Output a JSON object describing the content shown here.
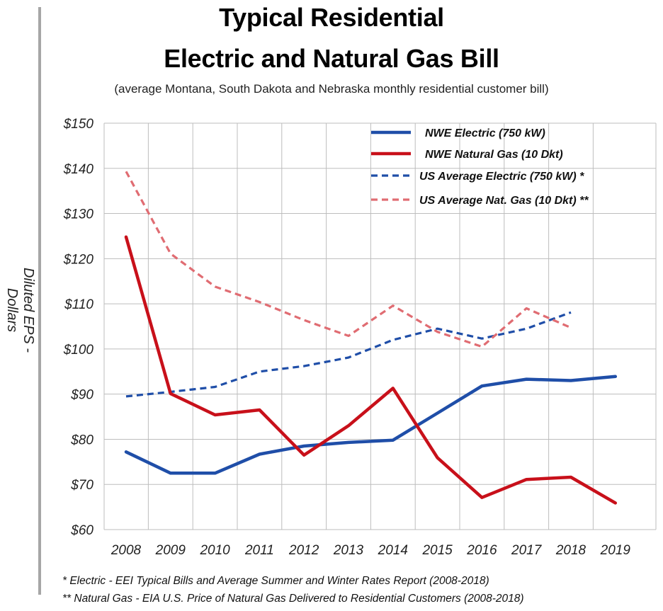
{
  "title_line1": "Typical Residential",
  "title_line2": "Electric and Natural Gas Bill",
  "subtitle": "(average Montana, South Dakota and Nebraska monthly residential customer bill)",
  "footnotes": [
    "* Electric - EEI Typical Bills and Average Summer and Winter Rates Report (2008-2018)",
    "** Natural Gas - EIA U.S. Price of Natural Gas Delivered to Residential Customers (2008-2018)"
  ],
  "chart_data": {
    "type": "line",
    "title": "Typical Residential Electric and Natural Gas Bill",
    "subtitle": "(average Montana, South Dakota and Nebraska monthly residential customer bill)",
    "ylabel": "Diluted EPS - Dollars",
    "xlabel": "",
    "ylim": [
      60,
      150
    ],
    "yticks": [
      60,
      70,
      80,
      90,
      100,
      110,
      120,
      130,
      140,
      150
    ],
    "ytick_labels": [
      "$60",
      "$70",
      "$80",
      "$90",
      "$100",
      "$110",
      "$120",
      "$130",
      "$140",
      "$150"
    ],
    "categories": [
      "2008",
      "2009",
      "2010",
      "2011",
      "2012",
      "2013",
      "2014",
      "2015",
      "2016",
      "2017",
      "2018",
      "2019"
    ],
    "grid": true,
    "legend_position": "top-right",
    "series": [
      {
        "name": "NWE Electric (750 kW)",
        "color": "#1f4ea8",
        "dash": "solid",
        "values": [
          77.2,
          72.5,
          72.5,
          76.7,
          78.5,
          79.3,
          79.8,
          85.8,
          91.8,
          93.3,
          93.0,
          93.9
        ]
      },
      {
        "name": "NWE Natural Gas (10 Dkt)",
        "color": "#c8101a",
        "dash": "solid",
        "values": [
          124.8,
          90.1,
          85.4,
          86.5,
          76.5,
          83.0,
          91.3,
          75.9,
          67.1,
          71.1,
          71.6,
          65.9
        ]
      },
      {
        "name": "US Average Electric (750 kW) *",
        "color": "#1f4ea8",
        "dash": "dashed",
        "values": [
          89.5,
          90.5,
          91.6,
          95.0,
          96.2,
          98.1,
          102.0,
          104.5,
          102.3,
          104.5,
          108.1,
          null
        ]
      },
      {
        "name": "US Average Nat. Gas (10 Dkt) **",
        "color": "#e06c72",
        "dash": "dashed",
        "values": [
          139.3,
          121.1,
          113.8,
          110.4,
          106.4,
          102.9,
          109.6,
          103.8,
          100.5,
          109.0,
          104.7,
          null
        ]
      }
    ]
  }
}
